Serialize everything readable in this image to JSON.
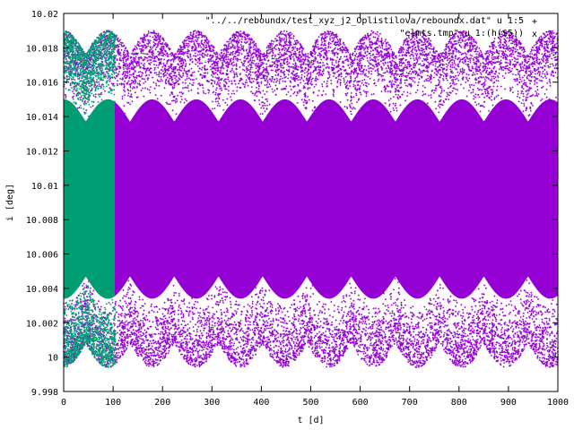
{
  "chart_data": {
    "type": "scatter",
    "title": "",
    "xlabel": "t [d]",
    "ylabel": "i [deg]",
    "xlim": [
      0,
      1000
    ],
    "ylim": [
      9.998,
      10.02
    ],
    "x_ticks": [
      0,
      100,
      200,
      300,
      400,
      500,
      600,
      700,
      800,
      900,
      1000
    ],
    "x_tick_labels": [
      "0",
      "100",
      "200",
      "300",
      "400",
      "500",
      "600",
      "700",
      "800",
      "900",
      "1000"
    ],
    "y_ticks": [
      9.998,
      10,
      10.002,
      10.004,
      10.006,
      10.008,
      10.01,
      10.012,
      10.014,
      10.016,
      10.018,
      10.02
    ],
    "y_tick_labels": [
      "9.998",
      "10",
      "10.002",
      "10.004",
      "10.006",
      "10.008",
      "10.01",
      "10.012",
      "10.014",
      "10.016",
      "10.018",
      "10.02"
    ],
    "grid": false,
    "legend_position": "top-right",
    "series": [
      {
        "name": "\"../../reboundx/test_xyz_j2_Oplistilova/reboundx.dat\" u 1:5",
        "marker": "+",
        "color": "#9400d3",
        "x_range": [
          0,
          1000
        ],
        "oscillation_period": 89.5,
        "band_center": 10.0092,
        "band_outer_amplitude": [
          0.0084,
          0.0098
        ],
        "band_inner_amplitude": [
          0.0045,
          0.0058
        ]
      },
      {
        "name": "\"elmts.tmp\" u 1:(h($5))",
        "marker": "x",
        "color": "#009e73",
        "x_range": [
          0,
          105
        ],
        "oscillation_period": 89.5,
        "band_center": 10.0092,
        "band_outer_amplitude": [
          0.0084,
          0.0098
        ],
        "band_inner_amplitude": [
          0.0045,
          0.0058
        ]
      }
    ]
  }
}
